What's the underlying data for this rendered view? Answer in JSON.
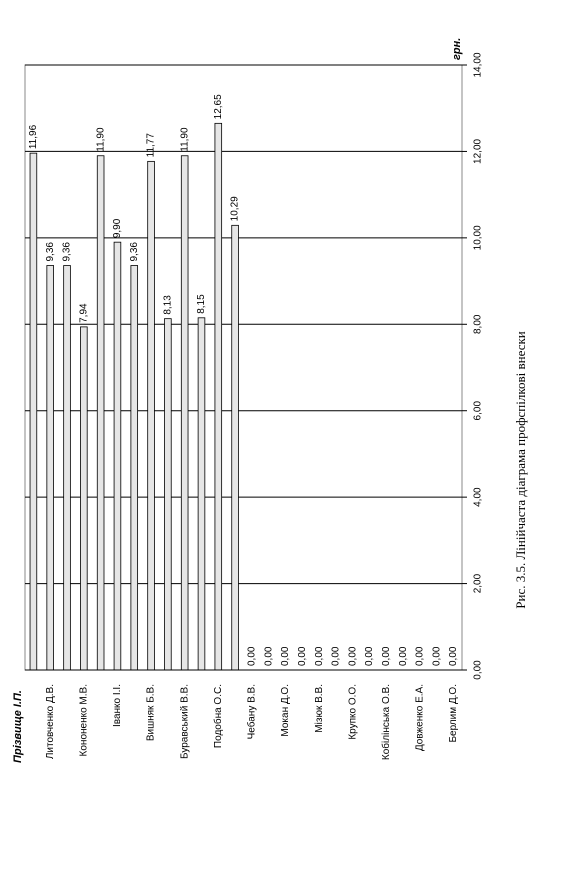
{
  "chart_data": {
    "type": "bar",
    "caption": "Рис. 3.5. Лінійчаста діаграма профспілкові внески",
    "x_label": "Прізвище І.П.",
    "y_label": "грн.",
    "categories": [
      null,
      "Литовченко Д.В.",
      null,
      "Кононенко М.В.",
      null,
      "Іванко І.І.",
      null,
      "Вишняк Б.В.",
      null,
      "Буравський В.В.",
      null,
      "Подобна О.С.",
      null,
      "Чебану В.В.",
      null,
      "Мокан Д.О.",
      null,
      "Мізюк В.В.",
      null,
      "Крупко О.О.",
      null,
      "Кобілінська О.В.",
      null,
      "Довженко Е.А.",
      null,
      "Берлим Д.О."
    ],
    "values": [
      11.96,
      9.36,
      9.36,
      7.94,
      11.9,
      9.9,
      9.36,
      11.77,
      8.13,
      11.9,
      8.15,
      12.65,
      10.29,
      0,
      0,
      0,
      0,
      0,
      0,
      0,
      0,
      0,
      0,
      0,
      0,
      0
    ],
    "value_labels": [
      "11,96",
      "9,36",
      "9,36",
      "7,94",
      "11,90",
      "9,90",
      "9,36",
      "11,77",
      "8,13",
      "11,90",
      "8,15",
      "12,65",
      "10,29",
      "0,00",
      "0,00",
      "0,00",
      "0,00",
      "0,00",
      "0,00",
      "0,00",
      "0,00",
      "0,00",
      "0,00",
      "0,00",
      "0,00",
      "0,00"
    ],
    "color": "#e6e6e6",
    "ylim": [
      0,
      14
    ],
    "yticks": [
      {
        "value": 0,
        "label": "0,00"
      },
      {
        "value": 2,
        "label": "2,00"
      },
      {
        "value": 4,
        "label": "4,00"
      },
      {
        "value": 6,
        "label": "6,00"
      },
      {
        "value": 8,
        "label": "8,00"
      },
      {
        "value": 10,
        "label": "10,00"
      },
      {
        "value": 12,
        "label": "12,00"
      },
      {
        "value": 14,
        "label": "14,00"
      }
    ],
    "grid": true
  }
}
